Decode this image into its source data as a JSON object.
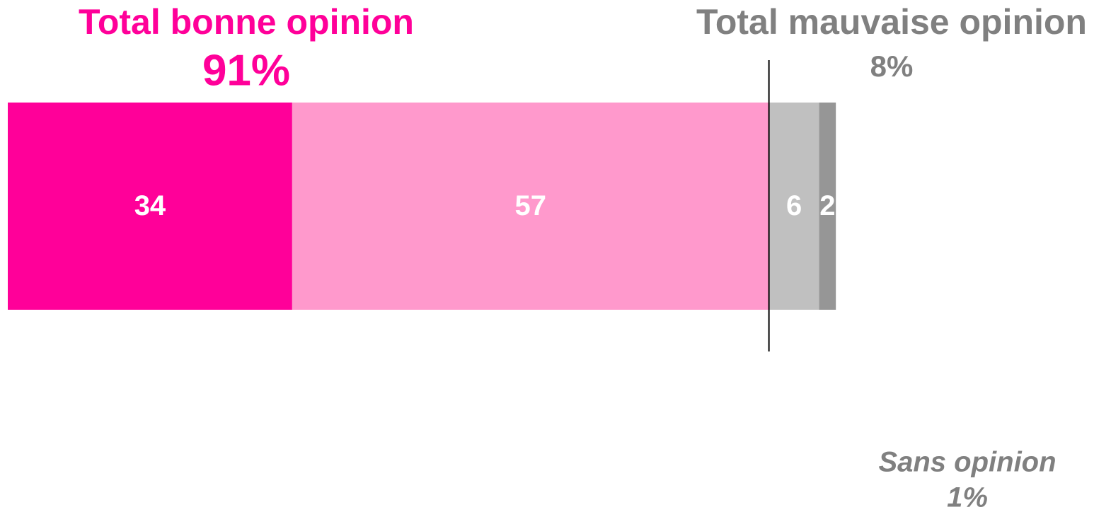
{
  "chart_data": {
    "type": "bar",
    "stacked": true,
    "orientation": "horizontal",
    "values": [
      34,
      57,
      6,
      2
    ],
    "colors": [
      "#ff0099",
      "#ff99cc",
      "#c0c0c0",
      "#969696"
    ],
    "label_color": "#ffffff",
    "annotations": [
      {
        "text": "Total bonne opinion",
        "label": "91%",
        "color": "#ff0099"
      },
      {
        "text": "Total mauvaise opinion",
        "label": "8%",
        "color": "#808080"
      },
      {
        "text": "Sans opinion",
        "label": "1%",
        "color": "#808080"
      }
    ]
  }
}
